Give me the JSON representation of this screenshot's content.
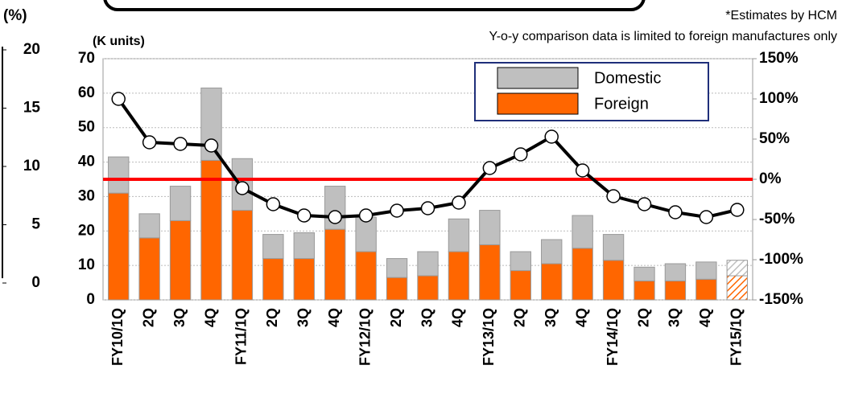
{
  "chart_data": {
    "type": "bar",
    "stacked": true,
    "y_label": "(K units)",
    "notes": [
      "*Estimates by HCM",
      "Y-o-y comparison data is limited to foreign manufactures only"
    ],
    "categories": [
      "FY10/1Q",
      "2Q",
      "3Q",
      "4Q",
      "FY11/1Q",
      "2Q",
      "3Q",
      "4Q",
      "FY12/1Q",
      "2Q",
      "3Q",
      "4Q",
      "FY13/1Q",
      "2Q",
      "3Q",
      "4Q",
      "FY14/1Q",
      "2Q",
      "3Q",
      "4Q",
      "FY15/1Q"
    ],
    "series": [
      {
        "name": "Foreign",
        "color": "#ff6600",
        "values": [
          31,
          18,
          23,
          40.5,
          26,
          12,
          12,
          20.5,
          14,
          6.5,
          7,
          14,
          16,
          8.5,
          10.5,
          15,
          11.5,
          5.5,
          5.5,
          6,
          7
        ]
      },
      {
        "name": "Domestic",
        "color": "#bfbfbf",
        "values": [
          10.5,
          7,
          10,
          21,
          15,
          7,
          7.5,
          12.5,
          10,
          5.5,
          7,
          9.5,
          10,
          5.5,
          7,
          9.5,
          7.5,
          4,
          5,
          5,
          4.5
        ]
      },
      {
        "type": "line",
        "axis": "y2",
        "color": "#000000",
        "values": [
          100,
          46,
          44,
          42,
          -11,
          -31,
          -45,
          -47,
          -45,
          -39,
          -36,
          -29,
          14,
          31,
          53,
          11,
          -21,
          -31,
          -41,
          -47,
          -38
        ]
      }
    ],
    "hatch_last_bar": true,
    "ylim": [
      0,
      70
    ],
    "yticks": [
      0,
      10,
      20,
      30,
      40,
      50,
      60,
      70
    ],
    "y2lim": [
      -150,
      150
    ],
    "y2ticks": [
      {
        "value": -150,
        "label": "-150%"
      },
      {
        "value": -100,
        "label": "-100%"
      },
      {
        "value": -50,
        "label": "-50%"
      },
      {
        "value": 0,
        "label": "0%"
      },
      {
        "value": 50,
        "label": "50%"
      },
      {
        "value": 100,
        "label": "100%"
      },
      {
        "value": 150,
        "label": "150%"
      }
    ],
    "reference_line": {
      "axis": "y2",
      "value": 0,
      "color": "#ff0000"
    },
    "grid": true,
    "legend": "top-right"
  },
  "left_fragment": {
    "unit_label": "(%)",
    "yticks": [
      0,
      5,
      10,
      15,
      20
    ],
    "ylim": [
      0,
      20
    ]
  }
}
